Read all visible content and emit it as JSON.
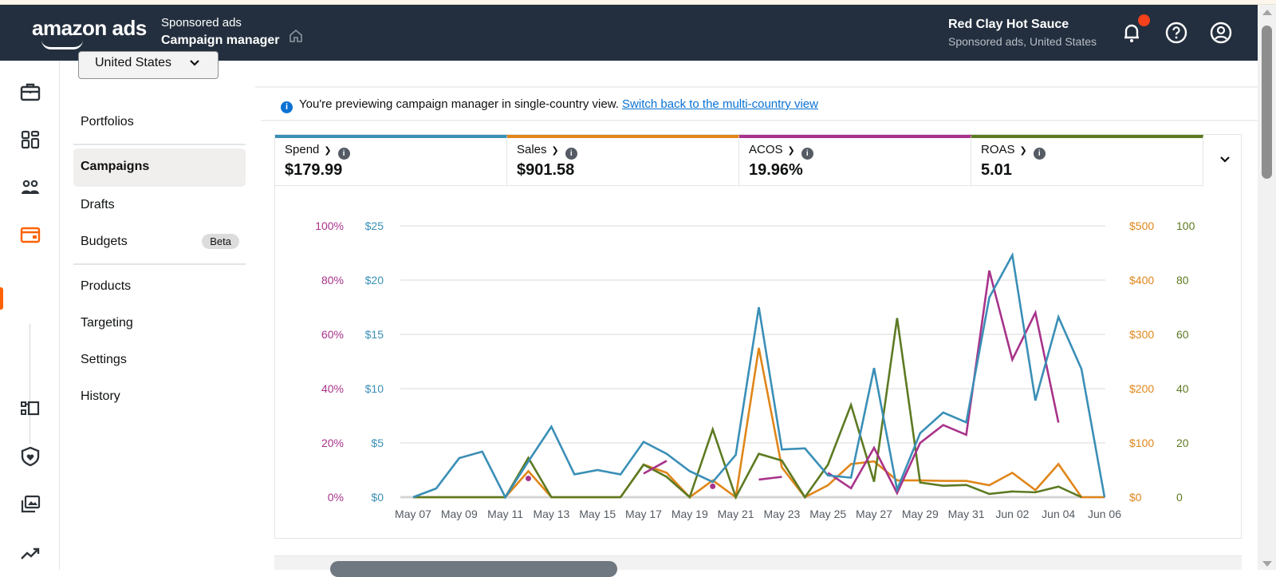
{
  "header": {
    "logo": "amazon ads",
    "subtitle": "Sponsored ads",
    "title": "Campaign manager",
    "account_name": "Red Clay Hot Sauce",
    "account_sub": "Sponsored ads, United States",
    "icons": [
      "home-icon",
      "bell-icon",
      "help-icon",
      "account-icon"
    ],
    "notification_dot_color": "#f2411b"
  },
  "rail": {
    "icons": [
      "briefcase-icon",
      "dashboard-icon",
      "audiences-icon",
      "campaigns-wallet-icon",
      "flow-icon",
      "brand-shield-icon",
      "creative-gallery-icon",
      "trending-icon"
    ],
    "active_color": "#ff6200"
  },
  "country_select": {
    "value": "United States"
  },
  "nav": {
    "items": [
      {
        "label": "Portfolios"
      },
      {
        "label": "Campaigns",
        "active": true
      },
      {
        "label": "Drafts"
      },
      {
        "label": "Budgets",
        "badge": "Beta"
      },
      {
        "label": "Products"
      },
      {
        "label": "Targeting"
      },
      {
        "label": "Settings"
      },
      {
        "label": "History"
      }
    ]
  },
  "notice": {
    "text": "You're previewing campaign manager in single-country view.",
    "link": "Switch back to the multi-country view"
  },
  "metrics": [
    {
      "label": "Spend",
      "value": "$179.99",
      "color": "#3a8fb7"
    },
    {
      "label": "Sales",
      "value": "$901.58",
      "color": "#e0861a"
    },
    {
      "label": "ACOS",
      "value": "19.96%",
      "color": "#a8338a"
    },
    {
      "label": "ROAS",
      "value": "5.01",
      "color": "#5d7a22"
    }
  ],
  "chart_data": {
    "type": "line",
    "x": [
      "May 07",
      "May 08",
      "May 09",
      "May 10",
      "May 11",
      "May 12",
      "May 13",
      "May 14",
      "May 15",
      "May 16",
      "May 17",
      "May 18",
      "May 19",
      "May 20",
      "May 21",
      "May 22",
      "May 23",
      "May 24",
      "May 25",
      "May 26",
      "May 27",
      "May 28",
      "May 29",
      "May 30",
      "May 31",
      "Jun 01",
      "Jun 02",
      "Jun 03",
      "Jun 04",
      "Jun 05",
      "Jun 06"
    ],
    "x_tick_labels": [
      "May 07",
      "May 09",
      "May 11",
      "May 13",
      "May 15",
      "May 17",
      "May 19",
      "May 21",
      "May 23",
      "May 25",
      "May 27",
      "May 29",
      "May 31",
      "Jun 02",
      "Jun 04",
      "Jun 06"
    ],
    "grid": true,
    "legend": "none (metric tiles above act as legend)",
    "axes": {
      "acos": {
        "side": "left-outer",
        "range": [
          0,
          100
        ],
        "ticks": [
          "0%",
          "20%",
          "40%",
          "60%",
          "80%",
          "100%"
        ],
        "color": "#a8338a"
      },
      "spend": {
        "side": "left-inner",
        "range": [
          0,
          25
        ],
        "ticks": [
          "$0",
          "$5",
          "$10",
          "$15",
          "$20",
          "$25"
        ],
        "color": "#3a8fb7"
      },
      "sales": {
        "side": "right-inner",
        "range": [
          0,
          500
        ],
        "ticks": [
          "$0",
          "$100",
          "$200",
          "$300",
          "$400",
          "$500"
        ],
        "color": "#e0861a"
      },
      "roas": {
        "side": "right-outer",
        "range": [
          0,
          100
        ],
        "ticks": [
          "0",
          "20",
          "40",
          "60",
          "80",
          "100"
        ],
        "color": "#5d7a22"
      }
    },
    "series": [
      {
        "name": "Spend",
        "axis": "spend",
        "color": "#3a8fb7",
        "values": [
          0,
          0.8,
          3.6,
          4.2,
          0,
          3.3,
          6.5,
          2.1,
          2.5,
          2.1,
          5.1,
          4.0,
          2.4,
          1.4,
          3.9,
          17.5,
          4.4,
          4.5,
          2.0,
          1.8,
          11.9,
          0.7,
          5.9,
          7.8,
          6.9,
          18.4,
          22.3,
          8.9,
          16.6,
          11.8,
          0
        ]
      },
      {
        "name": "Sales",
        "axis": "sales",
        "color": "#e0861a",
        "values": [
          0,
          0,
          0,
          0,
          0,
          48,
          0,
          0,
          0,
          0,
          60,
          45,
          0,
          31,
          0,
          275,
          55,
          0,
          22,
          61,
          66,
          31,
          31,
          30,
          30,
          22,
          45,
          13,
          61,
          0,
          0
        ]
      },
      {
        "name": "ACOS",
        "axis": "acos",
        "color": "#a8338a",
        "values": [
          null,
          null,
          null,
          null,
          null,
          6.9,
          null,
          null,
          null,
          null,
          8.7,
          13.4,
          null,
          4.0,
          null,
          6.5,
          7.5,
          null,
          9.0,
          3.3,
          18.2,
          1.5,
          20.0,
          26.6,
          23.0,
          83.5,
          50.7,
          68.0,
          27.5,
          null,
          null
        ]
      },
      {
        "name": "ROAS",
        "axis": "roas",
        "color": "#5d7a22",
        "values": [
          0,
          0,
          0,
          0,
          0,
          14.5,
          0,
          0,
          0,
          0,
          12,
          7.5,
          0,
          25,
          0,
          16,
          13.5,
          0,
          12,
          34,
          5.7,
          66,
          5.4,
          4.2,
          4.5,
          1.2,
          2.1,
          1.8,
          3.9,
          0,
          null
        ]
      }
    ]
  }
}
